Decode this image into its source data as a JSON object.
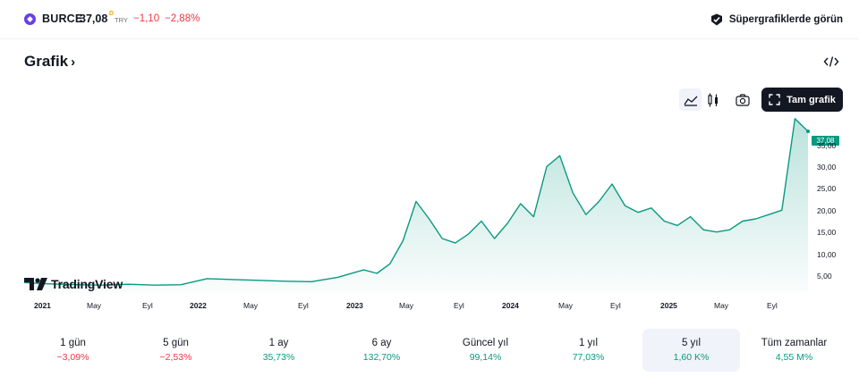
{
  "ticker": {
    "symbol": "BURCE",
    "price": "37,08",
    "price_flag": "D",
    "currency": "TRY",
    "change_abs": "−1,10",
    "change_pct": "−2,88%"
  },
  "super_charts_label": "Süpergrafiklerde görün",
  "section_title": "Grafik",
  "toolbar": {
    "full_chart_label": "Tam grafik",
    "icons": [
      "area-chart-icon",
      "candles-icon",
      "camera-icon",
      "fullscreen-icon",
      "embed-code-icon"
    ]
  },
  "chart_data": {
    "type": "area",
    "currency": "TRY",
    "last_price_label": "37,08",
    "y_ticks": [
      "35,00",
      "30,00",
      "25,00",
      "20,00",
      "15,00",
      "10,00",
      "5,00"
    ],
    "x_ticks": [
      {
        "label": "2021",
        "year": true
      },
      {
        "label": "May",
        "year": false
      },
      {
        "label": "Eyl",
        "year": false
      },
      {
        "label": "2022",
        "year": true
      },
      {
        "label": "May",
        "year": false
      },
      {
        "label": "Eyl",
        "year": false
      },
      {
        "label": "2023",
        "year": true
      },
      {
        "label": "May",
        "year": false
      },
      {
        "label": "Eyl",
        "year": false
      },
      {
        "label": "2024",
        "year": true
      },
      {
        "label": "May",
        "year": false
      },
      {
        "label": "Eyl",
        "year": false
      },
      {
        "label": "2025",
        "year": true
      },
      {
        "label": "May",
        "year": false
      },
      {
        "label": "Eyl",
        "year": false
      }
    ],
    "x": [
      "2020-11",
      "2021-01",
      "2021-03",
      "2021-05",
      "2021-07",
      "2021-09",
      "2021-11",
      "2022-01",
      "2022-03",
      "2022-05",
      "2022-07",
      "2022-09",
      "2022-11",
      "2023-01",
      "2023-02",
      "2023-03",
      "2023-04",
      "2023-05",
      "2023-06",
      "2023-07",
      "2023-08",
      "2023-09",
      "2023-10",
      "2023-11",
      "2023-12",
      "2024-01",
      "2024-02",
      "2024-03",
      "2024-04",
      "2024-05",
      "2024-06",
      "2024-07",
      "2024-08",
      "2024-09",
      "2024-10",
      "2024-11",
      "2024-12",
      "2025-01",
      "2025-02",
      "2025-03",
      "2025-04",
      "2025-05",
      "2025-06",
      "2025-07",
      "2025-08",
      "2025-09",
      "2025-10",
      "2025-11"
    ],
    "values": [
      2.4,
      2.1,
      1.9,
      1.8,
      2.0,
      1.8,
      1.9,
      3.3,
      3.1,
      2.9,
      2.7,
      2.6,
      3.6,
      5.3,
      4.5,
      6.7,
      12.0,
      21.0,
      17.0,
      12.5,
      11.5,
      13.5,
      16.5,
      12.5,
      16.0,
      20.5,
      17.5,
      29.0,
      31.5,
      23.0,
      18.0,
      21.0,
      25.0,
      20.0,
      18.5,
      19.5,
      16.5,
      15.5,
      17.5,
      14.5,
      14.0,
      14.5,
      16.5,
      17.0,
      18.0,
      19.0,
      40.0,
      37.08
    ],
    "ylim": [
      0,
      40
    ],
    "grid": false
  },
  "periods": [
    {
      "label": "1 gün",
      "value": "−3,09%",
      "sign": "neg",
      "selected": false
    },
    {
      "label": "5 gün",
      "value": "−2,53%",
      "sign": "neg",
      "selected": false
    },
    {
      "label": "1 ay",
      "value": "35,73%",
      "sign": "pos",
      "selected": false
    },
    {
      "label": "6 ay",
      "value": "132,70%",
      "sign": "pos",
      "selected": false
    },
    {
      "label": "Güncel yıl",
      "value": "99,14%",
      "sign": "pos",
      "selected": false
    },
    {
      "label": "1 yıl",
      "value": "77,03%",
      "sign": "pos",
      "selected": false
    },
    {
      "label": "5 yıl",
      "value": "1,60 K%",
      "sign": "pos",
      "selected": true
    },
    {
      "label": "Tüm zamanlar",
      "value": "4,55 M%",
      "sign": "pos",
      "selected": false
    }
  ],
  "branding": "TradingView",
  "colors": {
    "line": "#089981",
    "negative": "#f23645",
    "positive": "#089981",
    "selected_bg": "#f0f3fa"
  }
}
